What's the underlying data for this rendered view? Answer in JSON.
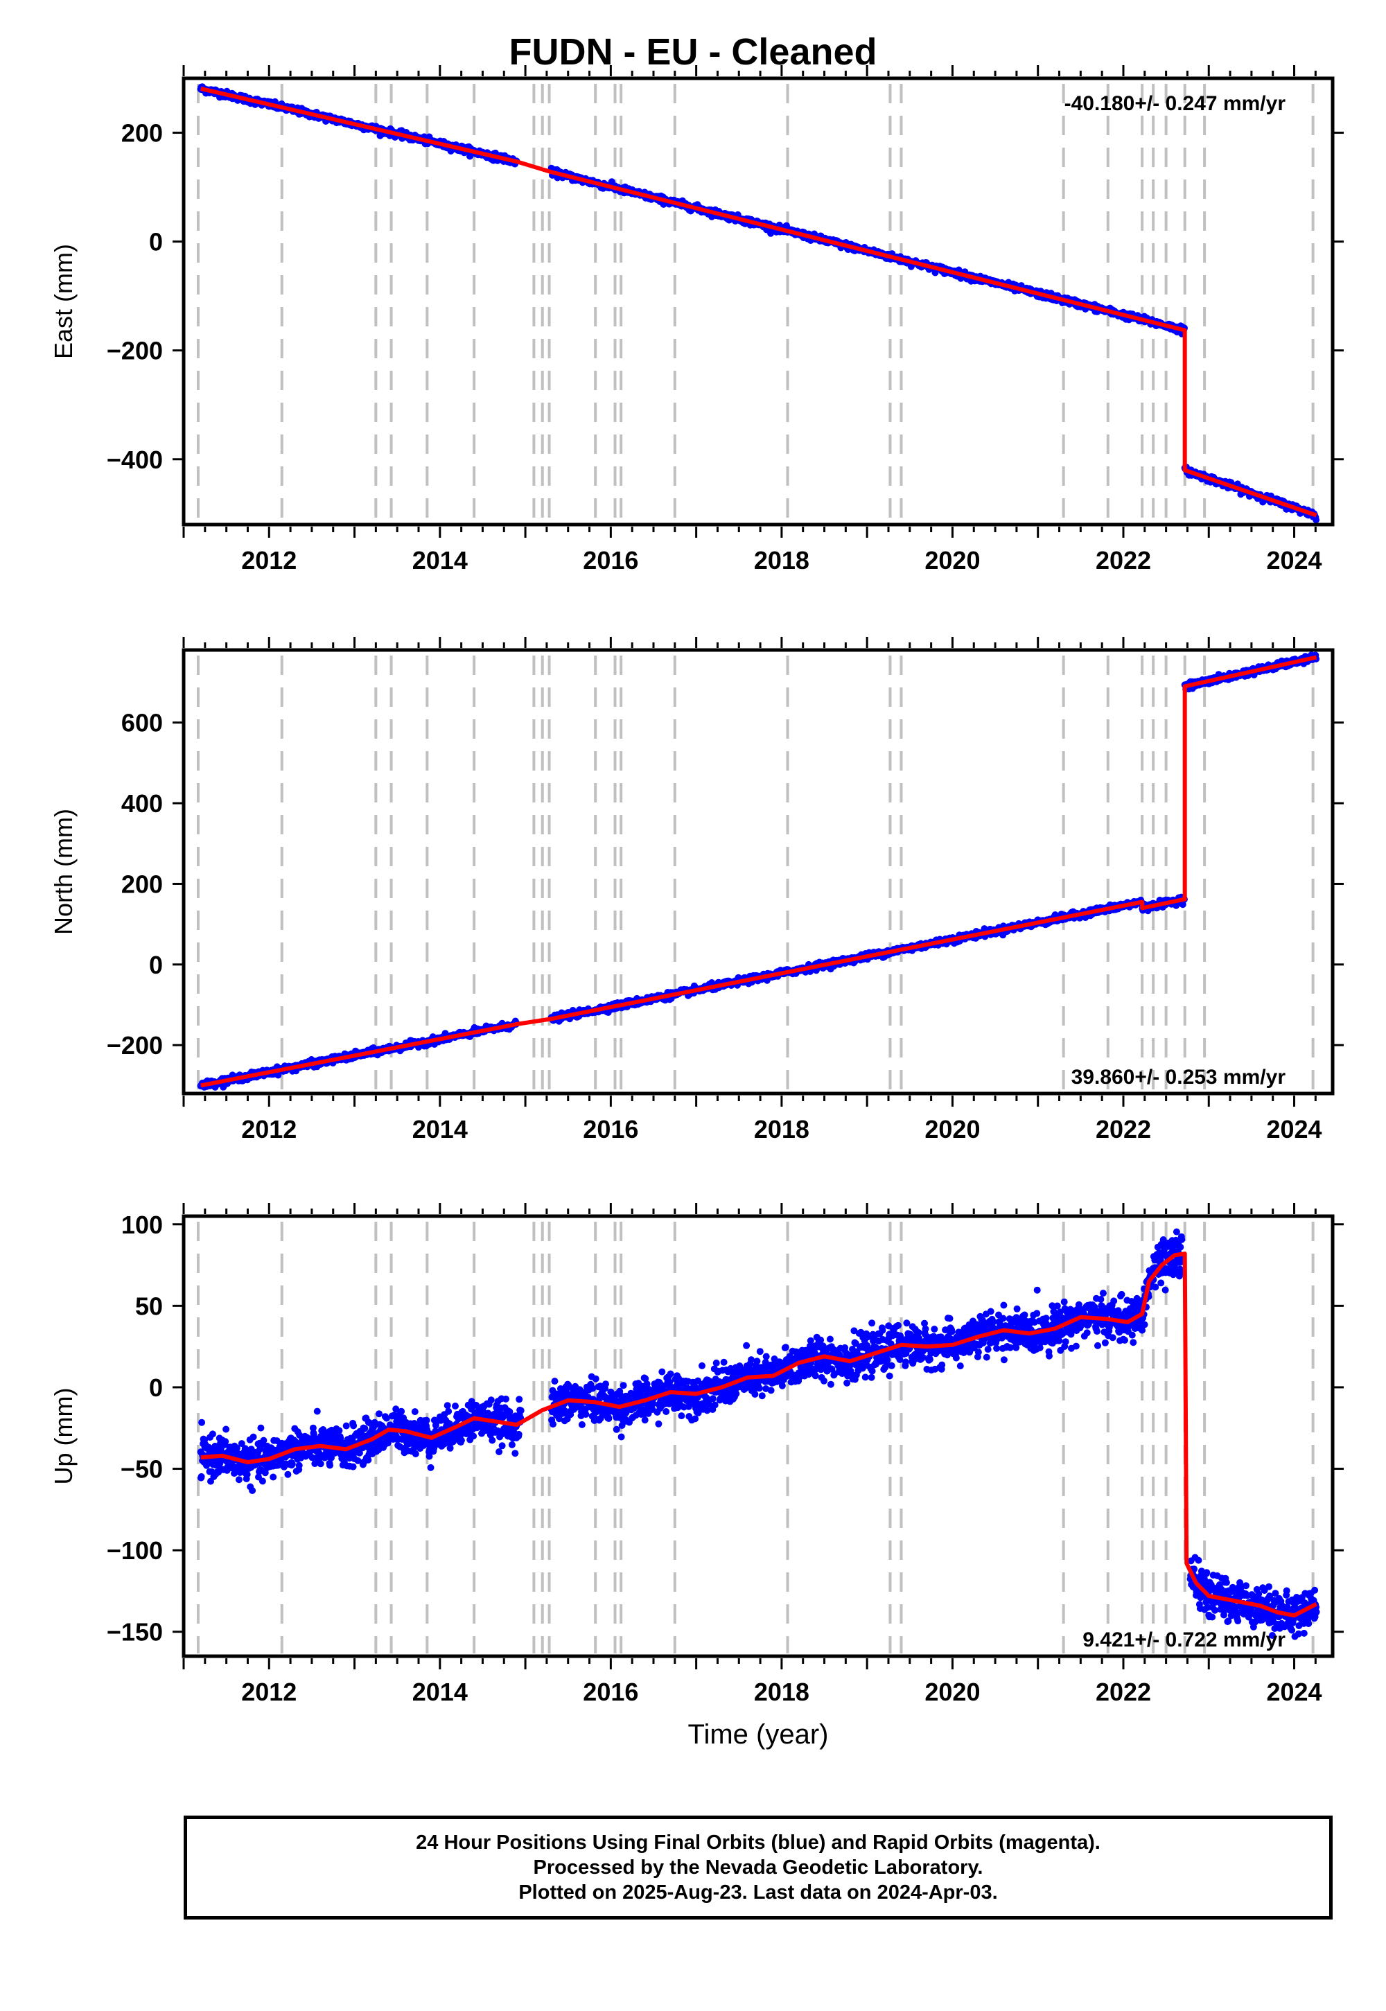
{
  "title": "FUDN  - EU - Cleaned",
  "footer": {
    "line1": "24 Hour Positions Using Final Orbits (blue) and Rapid Orbits (magenta).",
    "line2": "Processed by the Nevada Geodetic Laboratory.",
    "line3": "Plotted on 2025-Aug-23. Last data on 2024-Apr-03."
  },
  "colors": {
    "points": "#0000ff",
    "model": "#ff0000",
    "event_lines": "#c0c0c0",
    "frame": "#000000"
  },
  "chart_data": [
    {
      "type": "scatter",
      "name": "east",
      "ylabel": "East (mm)",
      "xlabel": "",
      "xlim": [
        2011.0,
        2024.45
      ],
      "ylim": [
        -520,
        300
      ],
      "yticks": [
        -400,
        -200,
        0,
        200
      ],
      "xticks": [
        2012,
        2014,
        2016,
        2018,
        2020,
        2022,
        2024
      ],
      "rate_label": "-40.180+/- 0.247 mm/yr",
      "rate_position": "top-right",
      "event_lines": [
        2011.17,
        2012.15,
        2013.25,
        2013.43,
        2013.85,
        2014.4,
        2015.1,
        2015.2,
        2015.28,
        2015.82,
        2016.05,
        2016.12,
        2016.75,
        2018.07,
        2019.27,
        2019.4,
        2021.3,
        2021.82,
        2022.22,
        2022.35,
        2022.5,
        2022.72,
        2022.95,
        2024.22
      ],
      "segments": [
        {
          "x": [
            2011.2,
            2014.9
          ],
          "y": [
            281,
            147
          ]
        },
        {
          "x": [
            2014.9,
            2015.3
          ],
          "y": [
            147,
            128
          ]
        },
        {
          "x": [
            2015.3,
            2022.72
          ],
          "y": [
            128,
            -163
          ]
        },
        {
          "x": [
            2022.72,
            2024.26
          ],
          "y": [
            -420,
            -503
          ]
        }
      ],
      "noise": 3,
      "gaps": [
        [
          2014.9,
          2015.3
        ]
      ],
      "legend_position": "none",
      "grid": false
    },
    {
      "type": "scatter",
      "name": "north",
      "ylabel": "North (mm)",
      "xlabel": "",
      "xlim": [
        2011.0,
        2024.45
      ],
      "ylim": [
        -320,
        780
      ],
      "yticks": [
        -200,
        0,
        200,
        400,
        600
      ],
      "xticks": [
        2012,
        2014,
        2016,
        2018,
        2020,
        2022,
        2024
      ],
      "rate_label": "39.860+/- 0.253 mm/yr",
      "rate_position": "bottom-right",
      "event_lines": [
        2011.17,
        2012.15,
        2013.25,
        2013.43,
        2013.85,
        2014.4,
        2015.1,
        2015.2,
        2015.28,
        2015.82,
        2016.05,
        2016.12,
        2016.75,
        2018.07,
        2019.27,
        2019.4,
        2021.3,
        2021.82,
        2022.22,
        2022.35,
        2022.5,
        2022.72,
        2022.95,
        2024.22
      ],
      "segments": [
        {
          "x": [
            2011.2,
            2014.9
          ],
          "y": [
            -300,
            -148
          ]
        },
        {
          "x": [
            2014.9,
            2015.3
          ],
          "y": [
            -148,
            -135
          ]
        },
        {
          "x": [
            2015.3,
            2022.22
          ],
          "y": [
            -135,
            155
          ]
        },
        {
          "x": [
            2022.22,
            2022.72
          ],
          "y": [
            140,
            162
          ]
        },
        {
          "x": [
            2022.72,
            2024.26
          ],
          "y": [
            690,
            762
          ]
        }
      ],
      "noise": 4,
      "gaps": [
        [
          2014.9,
          2015.3
        ]
      ],
      "legend_position": "none",
      "grid": false
    },
    {
      "type": "scatter",
      "name": "up",
      "ylabel": "Up (mm)",
      "xlabel": "Time (year)",
      "xlim": [
        2011.0,
        2024.45
      ],
      "ylim": [
        -165,
        105
      ],
      "yticks": [
        -150,
        -100,
        -50,
        0,
        50,
        100
      ],
      "xticks": [
        2012,
        2014,
        2016,
        2018,
        2020,
        2022,
        2024
      ],
      "rate_label": "9.421+/- 0.722 mm/yr",
      "rate_position": "bottom-right",
      "event_lines": [
        2011.17,
        2012.15,
        2013.25,
        2013.43,
        2013.85,
        2014.4,
        2015.1,
        2015.2,
        2015.28,
        2015.82,
        2016.05,
        2016.12,
        2016.75,
        2018.07,
        2019.27,
        2019.4,
        2021.3,
        2021.82,
        2022.22,
        2022.35,
        2022.5,
        2022.72,
        2022.95,
        2024.22
      ],
      "model_curve": {
        "x": [
          2011.2,
          2011.45,
          2011.75,
          2012.0,
          2012.3,
          2012.6,
          2012.9,
          2013.2,
          2013.4,
          2013.6,
          2013.9,
          2014.2,
          2014.4,
          2014.65,
          2014.9,
          2015.2,
          2015.5,
          2015.8,
          2016.1,
          2016.4,
          2016.7,
          2017.0,
          2017.3,
          2017.6,
          2017.9,
          2018.2,
          2018.5,
          2018.8,
          2019.1,
          2019.4,
          2019.7,
          2020.0,
          2020.3,
          2020.6,
          2020.9,
          2021.2,
          2021.5,
          2021.8,
          2022.05,
          2022.22,
          2022.3,
          2022.45,
          2022.6,
          2022.72,
          2022.74,
          2022.85,
          2023.0,
          2023.2,
          2023.4,
          2023.6,
          2023.8,
          2024.0,
          2024.26
        ],
        "y": [
          -43,
          -42,
          -46,
          -44,
          -38,
          -36,
          -38,
          -32,
          -26,
          -27,
          -31,
          -24,
          -19,
          -21,
          -23,
          -14,
          -8,
          -9,
          -12,
          -8,
          -3,
          -4,
          0,
          6,
          7,
          15,
          19,
          16,
          21,
          26,
          25,
          26,
          31,
          35,
          33,
          36,
          43,
          42,
          40,
          45,
          65,
          75,
          81,
          82,
          -108,
          -120,
          -128,
          -130,
          -132,
          -134,
          -138,
          -140,
          -133
        ]
      },
      "noise": 6,
      "gaps": [
        [
          2014.95,
          2015.3
        ]
      ],
      "legend_position": "none",
      "grid": false
    }
  ]
}
